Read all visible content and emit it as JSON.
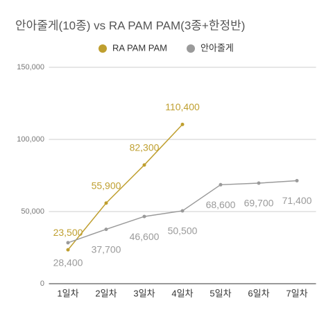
{
  "chart_data": {
    "type": "line",
    "title": "안아줄게(10종) vs RA PAM PAM(3종+한정반)",
    "categories": [
      "1일차",
      "2일차",
      "3일차",
      "4일차",
      "5일차",
      "6일차",
      "7일차"
    ],
    "series": [
      {
        "name": "RA PAM PAM",
        "color": "#bf9f2f",
        "values": [
          23500,
          55900,
          82300,
          110400,
          null,
          null,
          null
        ],
        "value_labels": [
          "23,500",
          "55,900",
          "82,300",
          "110,400",
          null,
          null,
          null
        ]
      },
      {
        "name": "안아줄게",
        "color": "#9a9a9a",
        "values": [
          28400,
          37700,
          46600,
          50500,
          68600,
          69700,
          71400
        ],
        "value_labels": [
          "28,400",
          "37,700",
          "46,600",
          "50,500",
          "68,600",
          "69,700",
          "71,400"
        ]
      }
    ],
    "ylim": [
      0,
      150000
    ],
    "yticks": [
      0,
      {
        "value": 50000,
        "label": "50,000"
      },
      {
        "value": 100000,
        "label": "100,000"
      },
      {
        "value": 150000,
        "label": "150,000"
      }
    ],
    "grid": true,
    "legend": "top"
  }
}
